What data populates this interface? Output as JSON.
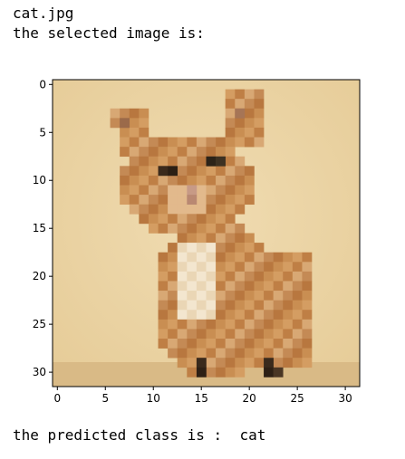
{
  "output": {
    "filename": "cat.jpg",
    "selected_label": "the selected image is:",
    "predicted_label": "the predicted class is :  cat"
  },
  "chart_data": {
    "type": "image",
    "content": "pixelated 32x32 photo of an orange tabby kitten on a beige background",
    "xlim": [
      -0.5,
      31.5
    ],
    "ylim": [
      31.5,
      -0.5
    ],
    "xticks": [
      0,
      5,
      10,
      15,
      20,
      25,
      30
    ],
    "yticks": [
      0,
      5,
      10,
      15,
      20,
      25,
      30
    ],
    "xtick_labels": [
      "0",
      "5",
      "10",
      "15",
      "20",
      "25",
      "30"
    ],
    "ytick_labels": [
      "0",
      "5",
      "10",
      "15",
      "20",
      "25",
      "30"
    ],
    "grid": false
  }
}
